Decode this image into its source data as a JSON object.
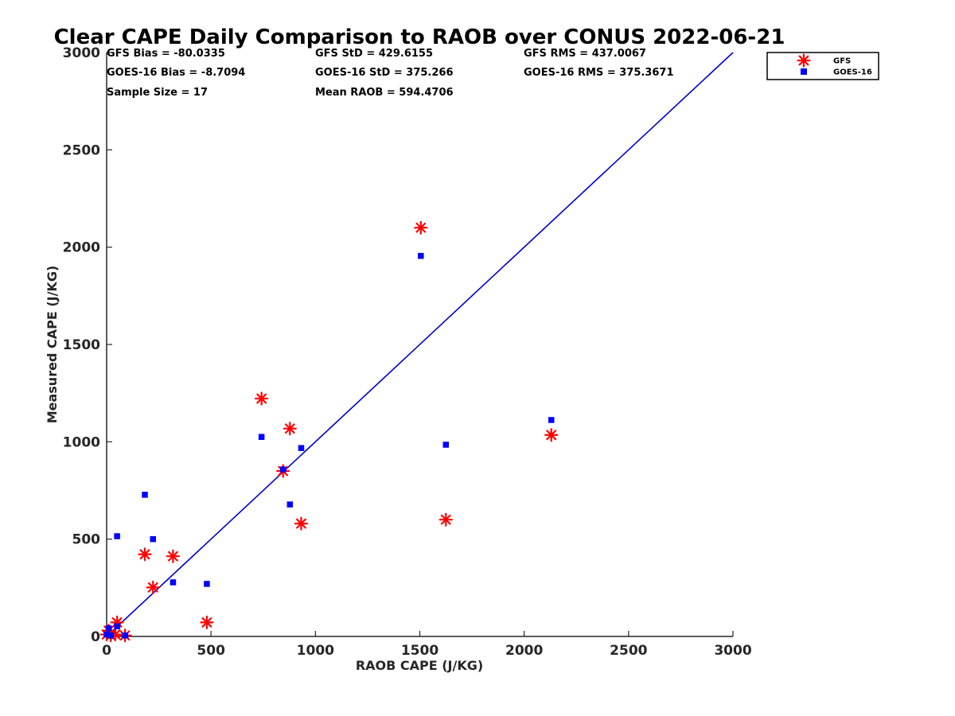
{
  "chart_data": {
    "type": "scatter",
    "title": "Clear CAPE Daily Comparison to RAOB over CONUS 2022-06-21",
    "xlabel": "RAOB CAPE (J/KG)",
    "ylabel": "Measured CAPE (J/KG)",
    "xlim": [
      0,
      3000
    ],
    "ylim": [
      0,
      3000
    ],
    "xticks": [
      "0",
      "500",
      "1000",
      "1500",
      "2000",
      "2500",
      "3000"
    ],
    "yticks": [
      "0",
      "500",
      "1000",
      "1500",
      "2000",
      "2500",
      "3000"
    ],
    "grid": false,
    "legend_position": "top-right",
    "stats": [
      [
        "GFS Bias = -80.0335",
        "GFS StD = 429.6155",
        "GFS RMS = 437.0067"
      ],
      [
        "GOES-16 Bias = -8.7094",
        "GOES-16 StD = 375.266",
        "GOES-16 RMS = 375.3671"
      ],
      [
        "Sample Size = 17",
        "Mean RAOB = 594.4706",
        ""
      ]
    ],
    "reference_line": {
      "x": [
        0,
        3000
      ],
      "y": [
        0,
        3000
      ],
      "color": "#0000cc"
    },
    "series": [
      {
        "name": "GFS",
        "marker": "asterisk",
        "color": "#ff0000",
        "points": [
          [
            1505,
            2100
          ],
          [
            742,
            1222
          ],
          [
            878,
            1068
          ],
          [
            2130,
            1035
          ],
          [
            845,
            850
          ],
          [
            1625,
            600
          ],
          [
            932,
            580
          ],
          [
            183,
            422
          ],
          [
            318,
            412
          ],
          [
            222,
            252
          ],
          [
            480,
            72
          ],
          [
            50,
            72
          ],
          [
            0,
            10
          ],
          [
            10,
            30
          ],
          [
            42,
            10
          ],
          [
            88,
            5
          ],
          [
            20,
            5
          ]
        ]
      },
      {
        "name": "GOES-16",
        "marker": "square",
        "color": "#0000ff",
        "points": [
          [
            1505,
            1955
          ],
          [
            2130,
            1112
          ],
          [
            742,
            1025
          ],
          [
            1625,
            985
          ],
          [
            932,
            968
          ],
          [
            845,
            858
          ],
          [
            183,
            728
          ],
          [
            878,
            678
          ],
          [
            50,
            515
          ],
          [
            222,
            500
          ],
          [
            318,
            278
          ],
          [
            480,
            270
          ],
          [
            50,
            52
          ],
          [
            10,
            42
          ],
          [
            0,
            10
          ],
          [
            88,
            5
          ],
          [
            20,
            5
          ]
        ]
      }
    ]
  }
}
